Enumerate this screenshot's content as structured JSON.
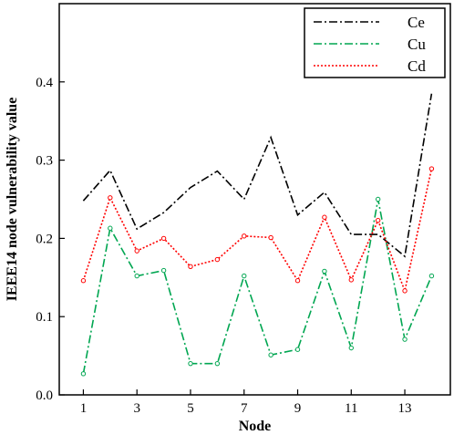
{
  "chart_data": {
    "type": "line",
    "title": "",
    "xlabel": "Node",
    "ylabel": "IEEE14 node vulnerability value",
    "xlim": [
      0.1,
      14.7
    ],
    "ylim": [
      0.0,
      0.5
    ],
    "x_ticks": [
      1,
      3,
      5,
      7,
      9,
      11,
      13
    ],
    "x_tick_labels": [
      "1",
      "3",
      "5",
      "7",
      "9",
      "11",
      "13"
    ],
    "y_ticks": [
      0.0,
      0.1,
      0.2,
      0.3,
      0.4
    ],
    "y_tick_labels": [
      "0.0",
      "0.1",
      "0.2",
      "0.3",
      "0.4"
    ],
    "grid": false,
    "legend_position": "top-right",
    "x": [
      1,
      2,
      3,
      4,
      5,
      6,
      7,
      8,
      9,
      10,
      11,
      12,
      13,
      14
    ],
    "series": [
      {
        "name": "Ce",
        "color": "#000000",
        "dash": "dash-dot",
        "values": [
          0.248,
          0.287,
          0.212,
          0.233,
          0.265,
          0.286,
          0.25,
          0.329,
          0.23,
          0.259,
          0.205,
          0.205,
          0.177,
          0.385
        ]
      },
      {
        "name": "Cu",
        "color": "#00a651",
        "dash": "dash-dot",
        "marker": "open-circle",
        "values": [
          0.027,
          0.213,
          0.152,
          0.159,
          0.04,
          0.04,
          0.152,
          0.051,
          0.058,
          0.158,
          0.06,
          0.25,
          0.071,
          0.152
        ]
      },
      {
        "name": "Cd",
        "color": "#ff0000",
        "dash": "dotted",
        "marker": "open-circle",
        "values": [
          0.146,
          0.252,
          0.184,
          0.2,
          0.164,
          0.173,
          0.203,
          0.201,
          0.146,
          0.227,
          0.147,
          0.223,
          0.133,
          0.289
        ]
      }
    ]
  }
}
